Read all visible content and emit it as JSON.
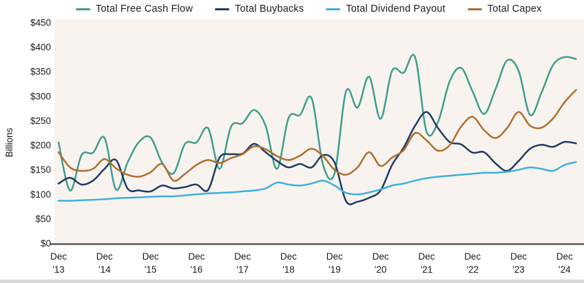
{
  "legend": {
    "items": [
      {
        "label": "Total Free Cash Flow",
        "color": "#3d9e8c"
      },
      {
        "label": "Total Buybacks",
        "color": "#1d3c63"
      },
      {
        "label": "Total Dividend Payout",
        "color": "#3cb0df"
      },
      {
        "label": "Total Capex",
        "color": "#b06e2b"
      }
    ]
  },
  "y_axis": {
    "title": "Billions",
    "tick_labels": [
      "$450",
      "$400",
      "$350",
      "$300",
      "$250",
      "$200",
      "$150",
      "$100",
      "$50",
      "$0"
    ],
    "tick_values": [
      450,
      400,
      350,
      300,
      250,
      200,
      150,
      100,
      50,
      0
    ]
  },
  "x_axis": {
    "tick_line1": "Dec",
    "tick_years": [
      "'13",
      "'14",
      "'15",
      "'16",
      "'17",
      "'18",
      "'19",
      "'20",
      "'21",
      "'22",
      "'23",
      "'24"
    ]
  },
  "chart_data": {
    "type": "line",
    "title": "",
    "ylabel": "Billions",
    "ylim": [
      0,
      450
    ],
    "grid": false,
    "legend_position": "top",
    "plot_background": "#f9f3f0",
    "frequency": "quarterly",
    "x_start": "Dec '13",
    "x_tick_labels": [
      "Dec '13",
      "Dec '14",
      "Dec '15",
      "Dec '16",
      "Dec '17",
      "Dec '18",
      "Dec '19",
      "Dec '20",
      "Dec '21",
      "Dec '22",
      "Dec '23",
      "Dec '24"
    ],
    "last_point_extends_past_final_tick": true,
    "series": [
      {
        "name": "Total Free Cash Flow",
        "color": "#3d9e8c",
        "values": [
          206,
          108,
          180,
          185,
          215,
          110,
          165,
          207,
          216,
          165,
          143,
          203,
          206,
          235,
          152,
          238,
          245,
          272,
          240,
          152,
          256,
          262,
          296,
          160,
          143,
          310,
          277,
          340,
          254,
          352,
          348,
          380,
          228,
          248,
          330,
          358,
          310,
          264,
          315,
          373,
          352,
          262,
          308,
          364,
          380,
          376
        ]
      },
      {
        "name": "Total Buybacks",
        "color": "#1d3c63",
        "values": [
          122,
          134,
          120,
          128,
          152,
          170,
          112,
          108,
          106,
          118,
          112,
          115,
          120,
          109,
          175,
          182,
          183,
          203,
          186,
          168,
          155,
          162,
          155,
          180,
          165,
          86,
          85,
          93,
          108,
          160,
          195,
          240,
          268,
          235,
          207,
          202,
          185,
          186,
          163,
          148,
          168,
          193,
          201,
          197,
          207,
          204
        ]
      },
      {
        "name": "Total Dividend Payout",
        "color": "#3cb0df",
        "values": [
          87,
          87,
          88,
          89,
          90,
          92,
          93,
          94,
          95,
          96,
          96,
          98,
          100,
          102,
          103,
          104,
          106,
          108,
          112,
          124,
          120,
          118,
          122,
          128,
          118,
          103,
          100,
          104,
          110,
          118,
          122,
          128,
          133,
          136,
          138,
          140,
          142,
          144,
          144,
          146,
          150,
          155,
          152,
          148,
          160,
          166
        ]
      },
      {
        "name": "Total Capex",
        "color": "#b06e2b",
        "values": [
          186,
          155,
          148,
          152,
          172,
          153,
          140,
          136,
          145,
          162,
          128,
          142,
          160,
          170,
          164,
          174,
          182,
          198,
          192,
          178,
          170,
          179,
          193,
          178,
          150,
          140,
          155,
          186,
          158,
          175,
          190,
          225,
          210,
          189,
          200,
          238,
          258,
          231,
          215,
          235,
          268,
          240,
          236,
          255,
          288,
          313
        ]
      }
    ]
  }
}
